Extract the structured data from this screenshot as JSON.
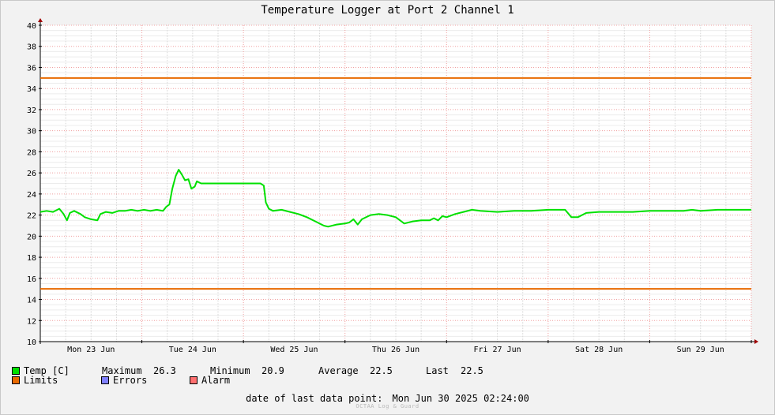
{
  "chart_data": {
    "type": "line",
    "title": "Temperature Logger at Port 2 Channel 1",
    "ylim": [
      10,
      40
    ],
    "y_ticks": [
      10,
      12,
      14,
      16,
      18,
      20,
      22,
      24,
      26,
      28,
      30,
      32,
      34,
      36,
      38,
      40
    ],
    "x_range_hours": [
      0,
      168
    ],
    "x_tick_labels": [
      {
        "label": "Mon 23 Jun",
        "hour": 12
      },
      {
        "label": "Tue 24 Jun",
        "hour": 36
      },
      {
        "label": "Wed 25 Jun",
        "hour": 60
      },
      {
        "label": "Thu 26 Jun",
        "hour": 84
      },
      {
        "label": "Fri 27 Jun",
        "hour": 108
      },
      {
        "label": "Sat 28 Jun",
        "hour": 132
      },
      {
        "label": "Sun 29 Jun",
        "hour": 156
      }
    ],
    "limits": [
      35,
      15
    ],
    "grid": true,
    "series": [
      {
        "name": "Temp [C]",
        "color": "#00e000",
        "points": [
          [
            0,
            22.3
          ],
          [
            1.5,
            22.4
          ],
          [
            3,
            22.3
          ],
          [
            4.5,
            22.6
          ],
          [
            5.5,
            22.1
          ],
          [
            6.3,
            21.5
          ],
          [
            7,
            22.2
          ],
          [
            8,
            22.4
          ],
          [
            9.5,
            22.1
          ],
          [
            10.5,
            21.8
          ],
          [
            12,
            21.6
          ],
          [
            13.5,
            21.5
          ],
          [
            14.2,
            22.1
          ],
          [
            15.5,
            22.3
          ],
          [
            17,
            22.2
          ],
          [
            18.5,
            22.4
          ],
          [
            20,
            22.4
          ],
          [
            21.5,
            22.5
          ],
          [
            23,
            22.4
          ],
          [
            24.5,
            22.5
          ],
          [
            26,
            22.4
          ],
          [
            27.5,
            22.5
          ],
          [
            29,
            22.4
          ],
          [
            29.8,
            22.8
          ],
          [
            30.5,
            23.0
          ],
          [
            31.2,
            24.5
          ],
          [
            32,
            25.7
          ],
          [
            32.7,
            26.3
          ],
          [
            33.5,
            25.8
          ],
          [
            34.2,
            25.3
          ],
          [
            35,
            25.4
          ],
          [
            35.7,
            24.5
          ],
          [
            36.5,
            24.7
          ],
          [
            37,
            25.2
          ],
          [
            38,
            25.0
          ],
          [
            40,
            25.0
          ],
          [
            44,
            25.0
          ],
          [
            48,
            25.0
          ],
          [
            52,
            25.0
          ],
          [
            52.8,
            24.8
          ],
          [
            53.3,
            23.2
          ],
          [
            54,
            22.6
          ],
          [
            55,
            22.4
          ],
          [
            57,
            22.5
          ],
          [
            59,
            22.3
          ],
          [
            61,
            22.1
          ],
          [
            63,
            21.8
          ],
          [
            65,
            21.4
          ],
          [
            67,
            21.0
          ],
          [
            68,
            20.9
          ],
          [
            70,
            21.1
          ],
          [
            72,
            21.2
          ],
          [
            73,
            21.3
          ],
          [
            74,
            21.6
          ],
          [
            75,
            21.1
          ],
          [
            76,
            21.6
          ],
          [
            78,
            22.0
          ],
          [
            80,
            22.1
          ],
          [
            82,
            22.0
          ],
          [
            84,
            21.8
          ],
          [
            85,
            21.5
          ],
          [
            86,
            21.2
          ],
          [
            88,
            21.4
          ],
          [
            90,
            21.5
          ],
          [
            92,
            21.5
          ],
          [
            93,
            21.7
          ],
          [
            94,
            21.5
          ],
          [
            95,
            21.9
          ],
          [
            96,
            21.8
          ],
          [
            98,
            22.1
          ],
          [
            100,
            22.3
          ],
          [
            102,
            22.5
          ],
          [
            104,
            22.4
          ],
          [
            108,
            22.3
          ],
          [
            112,
            22.4
          ],
          [
            116,
            22.4
          ],
          [
            120,
            22.5
          ],
          [
            124,
            22.5
          ],
          [
            125.5,
            21.8
          ],
          [
            127,
            21.8
          ],
          [
            129,
            22.2
          ],
          [
            132,
            22.3
          ],
          [
            136,
            22.3
          ],
          [
            140,
            22.3
          ],
          [
            144,
            22.4
          ],
          [
            148,
            22.4
          ],
          [
            152,
            22.4
          ],
          [
            154,
            22.5
          ],
          [
            156,
            22.4
          ],
          [
            160,
            22.5
          ],
          [
            164,
            22.5
          ],
          [
            168,
            22.5
          ]
        ]
      },
      {
        "name": "Limits",
        "color": "#e86a00"
      },
      {
        "name": "Errors",
        "color": "#8080ff"
      },
      {
        "name": "Alarm",
        "color": "#ff7070"
      }
    ]
  },
  "legend": {
    "temp_label": "Temp [C]",
    "maximum_label": "Maximum",
    "maximum_value": "26.3",
    "minimum_label": "Minimum",
    "minimum_value": "20.9",
    "average_label": "Average",
    "average_value": "22.5",
    "last_label": "Last",
    "last_value": "22.5",
    "limits_label": "Limits",
    "errors_label": "Errors",
    "alarm_label": "Alarm"
  },
  "footer": {
    "label": "date of last data point:",
    "value": "Mon Jun 30 2025 02:24:00",
    "credit": "OCTAA Log & Guard"
  }
}
